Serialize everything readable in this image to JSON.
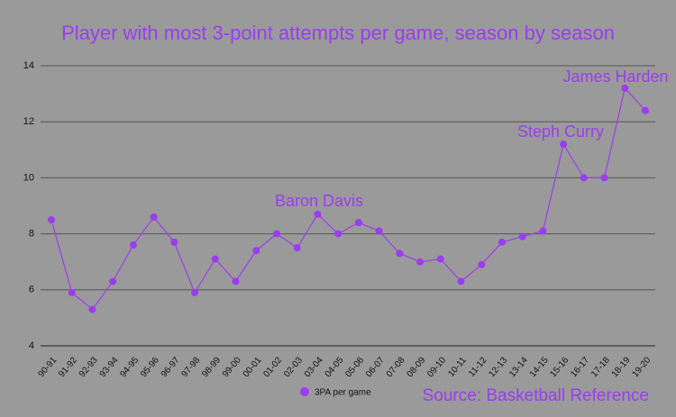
{
  "chart_data": {
    "type": "line",
    "title": "Player with most 3-point attempts per game, season by season",
    "categories": [
      "90-91",
      "91-92",
      "92-93",
      "93-94",
      "94-95",
      "95-96",
      "96-97",
      "97-98",
      "98-99",
      "99-00",
      "00-01",
      "01-02",
      "02-03",
      "03-04",
      "04-05",
      "05-06",
      "06-07",
      "07-08",
      "08-09",
      "09-10",
      "10-11",
      "11-12",
      "12-13",
      "13-14",
      "14-15",
      "15-16",
      "16-17",
      "17-18",
      "18-19",
      "19-20"
    ],
    "series": [
      {
        "name": "3PA per game",
        "color": "#9b3cf0",
        "values": [
          8.5,
          5.9,
          5.3,
          6.3,
          7.6,
          8.6,
          7.7,
          5.9,
          7.1,
          6.3,
          7.4,
          8.0,
          7.5,
          8.7,
          8.0,
          8.4,
          8.1,
          7.3,
          7.0,
          7.1,
          6.3,
          6.9,
          7.7,
          7.9,
          8.1,
          11.2,
          10.0,
          10.0,
          13.2,
          12.4
        ]
      }
    ],
    "ylim": [
      4,
      14
    ],
    "yticks": [
      4,
      6,
      8,
      10,
      12,
      14
    ],
    "grid": true,
    "annotations": [
      "Baron Davis",
      "Steph Curry",
      "James Harden"
    ],
    "source": "Source: Basketball Reference"
  }
}
